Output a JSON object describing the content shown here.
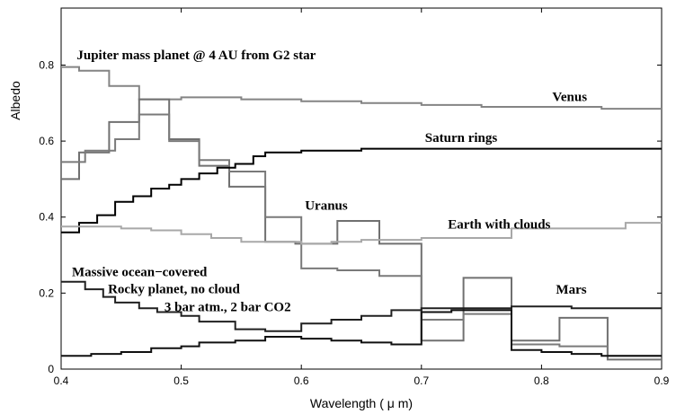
{
  "chart_data": {
    "type": "line",
    "step": true,
    "title": "",
    "xlabel": "Wavelength ( μ m)",
    "ylabel": "Albedo",
    "xlim": [
      0.4,
      0.9
    ],
    "ylim": [
      0,
      0.95
    ],
    "xticks": [
      0.4,
      0.5,
      0.6,
      0.7,
      0.8,
      0.9
    ],
    "xtick_labels": [
      "0.4",
      "0.5",
      "0.6",
      "0.7",
      "0.8",
      "0.9"
    ],
    "yticks": [
      0,
      0.2,
      0.4,
      0.6,
      0.8
    ],
    "ytick_labels": [
      "0",
      "0.2",
      "0.4",
      "0.6",
      "0.8"
    ],
    "grid": false,
    "legend": "none",
    "annotations": [
      {
        "text": "Jupiter mass planet @ 4 AU from G2 star",
        "x": 0.413,
        "y": 0.815
      },
      {
        "text": "Venus",
        "x": 0.809,
        "y": 0.705
      },
      {
        "text": "Saturn rings",
        "x": 0.703,
        "y": 0.598
      },
      {
        "text": "Uranus",
        "x": 0.603,
        "y": 0.42
      },
      {
        "text": "Earth with clouds",
        "x": 0.722,
        "y": 0.37
      },
      {
        "text": "Massive ocean−covered",
        "x": 0.409,
        "y": 0.245
      },
      {
        "text": "Rocky planet, no cloud",
        "x": 0.439,
        "y": 0.2
      },
      {
        "text": "3 bar atm., 2 bar CO2",
        "x": 0.486,
        "y": 0.153
      },
      {
        "text": "Mars",
        "x": 0.812,
        "y": 0.198
      }
    ],
    "series": [
      {
        "color": "#848484",
        "note": "Jupiter",
        "x": [
          0.4,
          0.415,
          0.44,
          0.465,
          0.475,
          0.5,
          0.55,
          0.6,
          0.65,
          0.7,
          0.75,
          0.8,
          0.85,
          0.9
        ],
        "y": [
          0.795,
          0.785,
          0.745,
          0.71,
          0.71,
          0.715,
          0.71,
          0.705,
          0.7,
          0.695,
          0.69,
          0.69,
          0.685,
          0.685
        ]
      },
      {
        "color": "#707070",
        "note": "Venus",
        "x": [
          0.4,
          0.415,
          0.44,
          0.465,
          0.49,
          0.515,
          0.54,
          0.57,
          0.595,
          0.63,
          0.665,
          0.7,
          0.735,
          0.775,
          0.815,
          0.855,
          0.9
        ],
        "y": [
          0.5,
          0.57,
          0.65,
          0.71,
          0.605,
          0.535,
          0.48,
          0.335,
          0.33,
          0.39,
          0.33,
          0.075,
          0.24,
          0.075,
          0.135,
          0.025,
          0.025
        ]
      },
      {
        "color": "#7a7a7a",
        "note": "Uranus",
        "x": [
          0.4,
          0.42,
          0.445,
          0.465,
          0.49,
          0.515,
          0.54,
          0.57,
          0.6,
          0.63,
          0.665,
          0.7,
          0.735,
          0.775,
          0.815,
          0.855,
          0.9
        ],
        "y": [
          0.545,
          0.575,
          0.605,
          0.67,
          0.6,
          0.55,
          0.52,
          0.4,
          0.265,
          0.26,
          0.245,
          0.13,
          0.145,
          0.065,
          0.06,
          0.035,
          0.035
        ]
      },
      {
        "color": "#000000",
        "note": "Saturn rings",
        "x": [
          0.4,
          0.415,
          0.43,
          0.445,
          0.46,
          0.475,
          0.49,
          0.5,
          0.515,
          0.53,
          0.545,
          0.56,
          0.57,
          0.6,
          0.65,
          0.7,
          0.75,
          0.8,
          0.85,
          0.9
        ],
        "y": [
          0.36,
          0.385,
          0.405,
          0.44,
          0.455,
          0.475,
          0.485,
          0.5,
          0.515,
          0.53,
          0.54,
          0.56,
          0.57,
          0.575,
          0.58,
          0.58,
          0.58,
          0.58,
          0.58,
          0.58
        ]
      },
      {
        "color": "#a8a8a8",
        "note": "Earth with clouds",
        "x": [
          0.4,
          0.425,
          0.45,
          0.475,
          0.5,
          0.525,
          0.55,
          0.575,
          0.6,
          0.625,
          0.65,
          0.675,
          0.7,
          0.725,
          0.75,
          0.775,
          0.8,
          0.825,
          0.85,
          0.87,
          0.9
        ],
        "y": [
          0.375,
          0.375,
          0.37,
          0.365,
          0.355,
          0.345,
          0.335,
          0.335,
          0.33,
          0.335,
          0.34,
          0.34,
          0.345,
          0.345,
          0.345,
          0.37,
          0.37,
          0.37,
          0.37,
          0.385,
          0.385
        ]
      },
      {
        "color": "#202020",
        "note": "Rocky planet",
        "x": [
          0.4,
          0.42,
          0.435,
          0.445,
          0.465,
          0.48,
          0.5,
          0.515,
          0.545,
          0.57,
          0.6,
          0.625,
          0.65,
          0.675,
          0.7,
          0.725,
          0.75,
          0.775,
          0.8,
          0.825,
          0.85,
          0.9
        ],
        "y": [
          0.23,
          0.21,
          0.19,
          0.175,
          0.16,
          0.15,
          0.14,
          0.125,
          0.105,
          0.1,
          0.12,
          0.13,
          0.14,
          0.155,
          0.16,
          0.16,
          0.16,
          0.165,
          0.165,
          0.16,
          0.16,
          0.16
        ]
      },
      {
        "color": "#101010",
        "note": "Mars",
        "x": [
          0.4,
          0.425,
          0.45,
          0.475,
          0.5,
          0.515,
          0.545,
          0.57,
          0.6,
          0.625,
          0.65,
          0.675,
          0.7,
          0.725,
          0.75,
          0.775,
          0.8,
          0.825,
          0.85,
          0.9
        ],
        "y": [
          0.035,
          0.04,
          0.045,
          0.055,
          0.06,
          0.07,
          0.075,
          0.085,
          0.08,
          0.075,
          0.07,
          0.065,
          0.15,
          0.155,
          0.155,
          0.05,
          0.045,
          0.04,
          0.035,
          0.035
        ]
      }
    ]
  }
}
